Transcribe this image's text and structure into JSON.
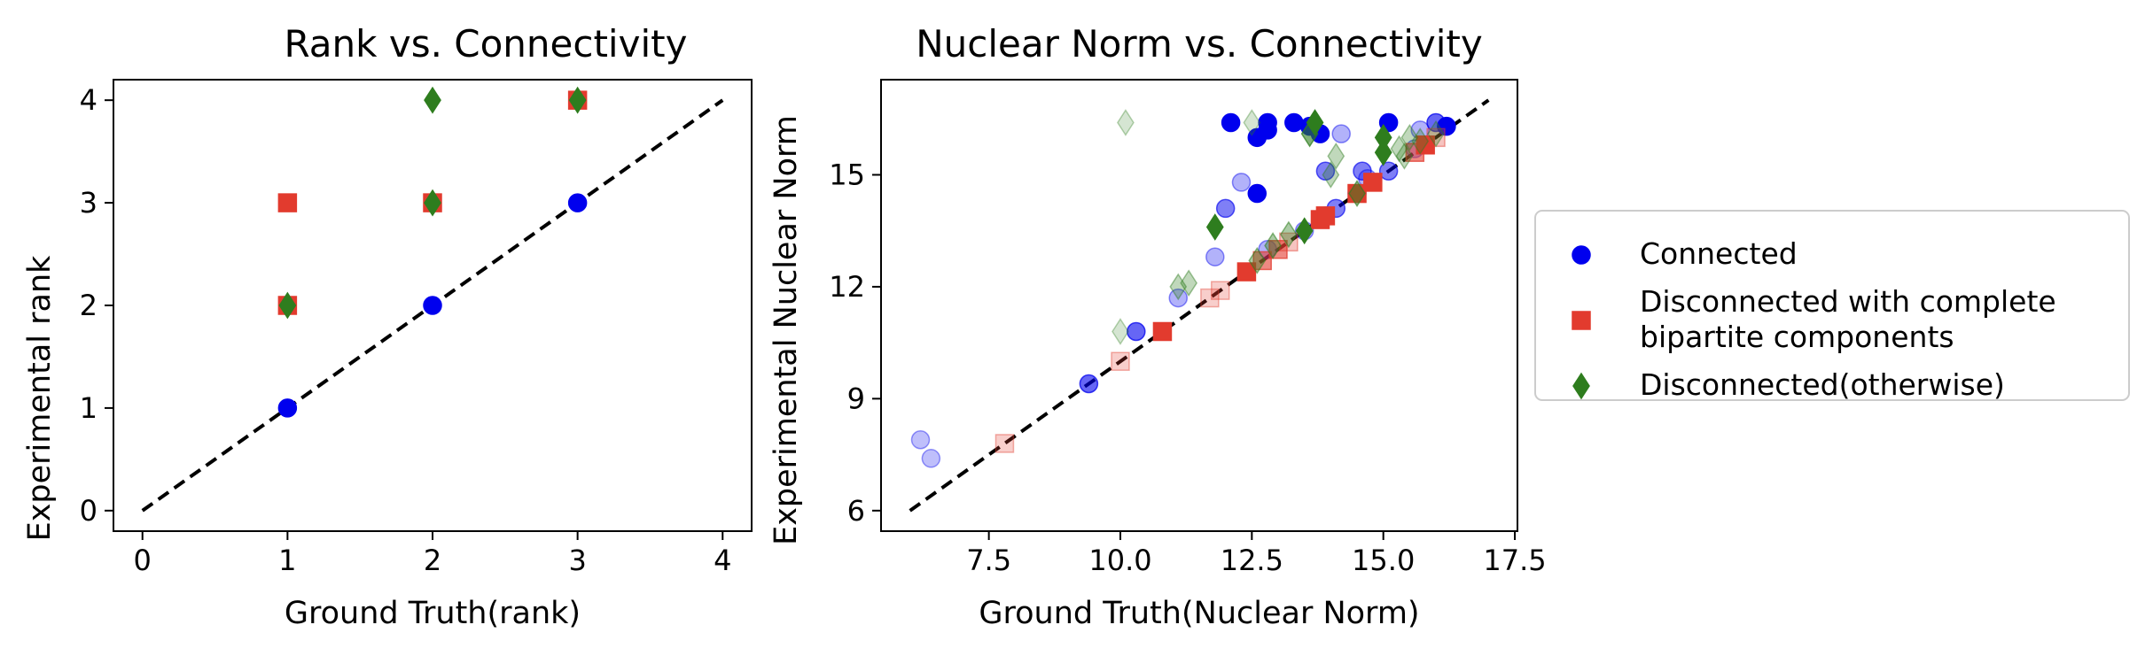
{
  "colors": {
    "connected": "#0000ee",
    "bipartite": "#e23b2e",
    "otherwise": "#2e7d1e",
    "diagonal": "#000000"
  },
  "legend": {
    "placement": "right-outside",
    "entries": [
      {
        "key": "connected",
        "marker": "circle",
        "lines": [
          "Connected"
        ]
      },
      {
        "key": "bipartite",
        "marker": "square",
        "lines": [
          "Disconnected with complete",
          "bipartite components"
        ]
      },
      {
        "key": "otherwise",
        "marker": "diamond",
        "lines": [
          "Disconnected(otherwise)"
        ]
      }
    ]
  },
  "chart_data": [
    {
      "type": "scatter",
      "title": "Rank vs. Connectivity",
      "xlabel": "Ground Truth(rank)",
      "ylabel": "Experimental rank",
      "xlim": [
        -0.2,
        4.2
      ],
      "ylim": [
        -0.2,
        4.2
      ],
      "xticks": [
        0,
        1,
        2,
        3,
        4
      ],
      "yticks": [
        0,
        1,
        2,
        3,
        4
      ],
      "xtick_labels": [
        "0",
        "1",
        "2",
        "3",
        "4"
      ],
      "ytick_labels": [
        "0",
        "1",
        "2",
        "3",
        "4"
      ],
      "diagonal": [
        [
          0,
          0
        ],
        [
          4,
          4
        ]
      ],
      "series": [
        {
          "name": "Connected",
          "marker": "circle",
          "points": [
            {
              "x": 1,
              "y": 1,
              "a": 1
            },
            {
              "x": 2,
              "y": 2,
              "a": 1
            },
            {
              "x": 3,
              "y": 3,
              "a": 1
            }
          ]
        },
        {
          "name": "Disconnected with complete bipartite components",
          "marker": "square",
          "points": [
            {
              "x": 1,
              "y": 3,
              "a": 1
            },
            {
              "x": 1,
              "y": 2,
              "a": 1
            },
            {
              "x": 2,
              "y": 3,
              "a": 1
            },
            {
              "x": 3,
              "y": 4,
              "a": 1
            }
          ]
        },
        {
          "name": "Disconnected(otherwise)",
          "marker": "diamond",
          "points": [
            {
              "x": 1,
              "y": 2,
              "a": 1
            },
            {
              "x": 2,
              "y": 4,
              "a": 1
            },
            {
              "x": 2,
              "y": 3,
              "a": 1
            },
            {
              "x": 3,
              "y": 4,
              "a": 1
            }
          ]
        }
      ]
    },
    {
      "type": "scatter",
      "title": "Nuclear Norm vs. Connectivity",
      "xlabel": "Ground Truth(Nuclear Norm)",
      "ylabel": "Experimental Nuclear Norm",
      "xlim": [
        5.45,
        17.55
      ],
      "ylim": [
        5.45,
        17.55
      ],
      "xticks": [
        7.5,
        10.0,
        12.5,
        15.0,
        17.5
      ],
      "yticks": [
        6,
        9,
        12,
        15
      ],
      "xtick_labels": [
        "7.5",
        "10.0",
        "12.5",
        "15.0",
        "17.5"
      ],
      "ytick_labels": [
        "6",
        "9",
        "12",
        "15"
      ],
      "diagonal": [
        [
          6,
          6
        ],
        [
          17,
          17
        ]
      ],
      "series": [
        {
          "name": "Connected",
          "marker": "circle",
          "points": [
            {
              "x": 6.2,
              "y": 7.9,
              "a": 0.25
            },
            {
              "x": 6.4,
              "y": 7.4,
              "a": 0.25
            },
            {
              "x": 9.4,
              "y": 9.4,
              "a": 0.6
            },
            {
              "x": 10.3,
              "y": 10.8,
              "a": 0.6
            },
            {
              "x": 11.1,
              "y": 11.7,
              "a": 0.3
            },
            {
              "x": 11.8,
              "y": 12.8,
              "a": 0.3
            },
            {
              "x": 12.0,
              "y": 14.1,
              "a": 0.5
            },
            {
              "x": 12.3,
              "y": 14.8,
              "a": 0.3
            },
            {
              "x": 12.6,
              "y": 14.5,
              "a": 1
            },
            {
              "x": 12.1,
              "y": 16.4,
              "a": 1
            },
            {
              "x": 12.6,
              "y": 16.0,
              "a": 1
            },
            {
              "x": 12.8,
              "y": 16.4,
              "a": 1
            },
            {
              "x": 12.8,
              "y": 16.2,
              "a": 1
            },
            {
              "x": 13.3,
              "y": 16.4,
              "a": 1
            },
            {
              "x": 13.6,
              "y": 16.3,
              "a": 1
            },
            {
              "x": 13.8,
              "y": 16.1,
              "a": 1
            },
            {
              "x": 14.2,
              "y": 16.1,
              "a": 0.3
            },
            {
              "x": 15.1,
              "y": 16.4,
              "a": 1
            },
            {
              "x": 16.2,
              "y": 16.3,
              "a": 1
            },
            {
              "x": 16.0,
              "y": 16.4,
              "a": 0.6
            },
            {
              "x": 15.7,
              "y": 16.2,
              "a": 0.3
            },
            {
              "x": 13.9,
              "y": 15.1,
              "a": 0.5
            },
            {
              "x": 14.6,
              "y": 15.1,
              "a": 0.5
            },
            {
              "x": 15.1,
              "y": 15.1,
              "a": 0.5
            },
            {
              "x": 14.1,
              "y": 14.1,
              "a": 0.5
            },
            {
              "x": 13.5,
              "y": 13.5,
              "a": 0.3
            },
            {
              "x": 12.8,
              "y": 13.0,
              "a": 0.3
            },
            {
              "x": 13.9,
              "y": 13.9,
              "a": 0.5
            },
            {
              "x": 14.5,
              "y": 14.5,
              "a": 0.5
            },
            {
              "x": 14.7,
              "y": 14.9,
              "a": 0.3
            },
            {
              "x": 15.6,
              "y": 15.7,
              "a": 0.3
            }
          ]
        },
        {
          "name": "Disconnected with complete bipartite components",
          "marker": "square",
          "points": [
            {
              "x": 7.8,
              "y": 7.8,
              "a": 0.25
            },
            {
              "x": 10.0,
              "y": 10.0,
              "a": 0.25
            },
            {
              "x": 10.8,
              "y": 10.8,
              "a": 1
            },
            {
              "x": 11.7,
              "y": 11.7,
              "a": 0.25
            },
            {
              "x": 11.9,
              "y": 11.9,
              "a": 0.25
            },
            {
              "x": 12.4,
              "y": 12.4,
              "a": 1
            },
            {
              "x": 12.7,
              "y": 12.7,
              "a": 0.6
            },
            {
              "x": 13.0,
              "y": 13.0,
              "a": 0.6
            },
            {
              "x": 13.2,
              "y": 13.2,
              "a": 0.3
            },
            {
              "x": 13.8,
              "y": 13.8,
              "a": 1
            },
            {
              "x": 13.9,
              "y": 13.9,
              "a": 1
            },
            {
              "x": 14.5,
              "y": 14.5,
              "a": 1
            },
            {
              "x": 14.8,
              "y": 14.8,
              "a": 1
            },
            {
              "x": 15.6,
              "y": 15.6,
              "a": 0.6
            },
            {
              "x": 15.8,
              "y": 15.8,
              "a": 1
            },
            {
              "x": 16.0,
              "y": 16.0,
              "a": 0.3
            }
          ]
        },
        {
          "name": "Disconnected(otherwise)",
          "marker": "diamond",
          "points": [
            {
              "x": 10.0,
              "y": 10.8,
              "a": 0.2
            },
            {
              "x": 11.1,
              "y": 12.0,
              "a": 0.3
            },
            {
              "x": 11.3,
              "y": 12.1,
              "a": 0.3
            },
            {
              "x": 11.8,
              "y": 13.6,
              "a": 1
            },
            {
              "x": 12.5,
              "y": 16.4,
              "a": 0.2
            },
            {
              "x": 12.6,
              "y": 12.7,
              "a": 0.4
            },
            {
              "x": 12.9,
              "y": 13.1,
              "a": 0.4
            },
            {
              "x": 13.2,
              "y": 13.4,
              "a": 0.4
            },
            {
              "x": 13.5,
              "y": 13.5,
              "a": 1
            },
            {
              "x": 13.6,
              "y": 16.1,
              "a": 0.6
            },
            {
              "x": 13.7,
              "y": 16.4,
              "a": 1
            },
            {
              "x": 14.0,
              "y": 15.0,
              "a": 0.3
            },
            {
              "x": 14.1,
              "y": 15.5,
              "a": 0.3
            },
            {
              "x": 14.5,
              "y": 14.5,
              "a": 0.5
            },
            {
              "x": 15.0,
              "y": 16.0,
              "a": 1
            },
            {
              "x": 15.0,
              "y": 15.6,
              "a": 1
            },
            {
              "x": 15.3,
              "y": 15.7,
              "a": 0.3
            },
            {
              "x": 15.4,
              "y": 15.5,
              "a": 0.3
            },
            {
              "x": 15.5,
              "y": 16.0,
              "a": 0.3
            },
            {
              "x": 15.7,
              "y": 15.9,
              "a": 0.3
            },
            {
              "x": 16.0,
              "y": 16.1,
              "a": 0.3
            },
            {
              "x": 10.1,
              "y": 16.4,
              "a": 0.2
            }
          ]
        }
      ]
    }
  ]
}
